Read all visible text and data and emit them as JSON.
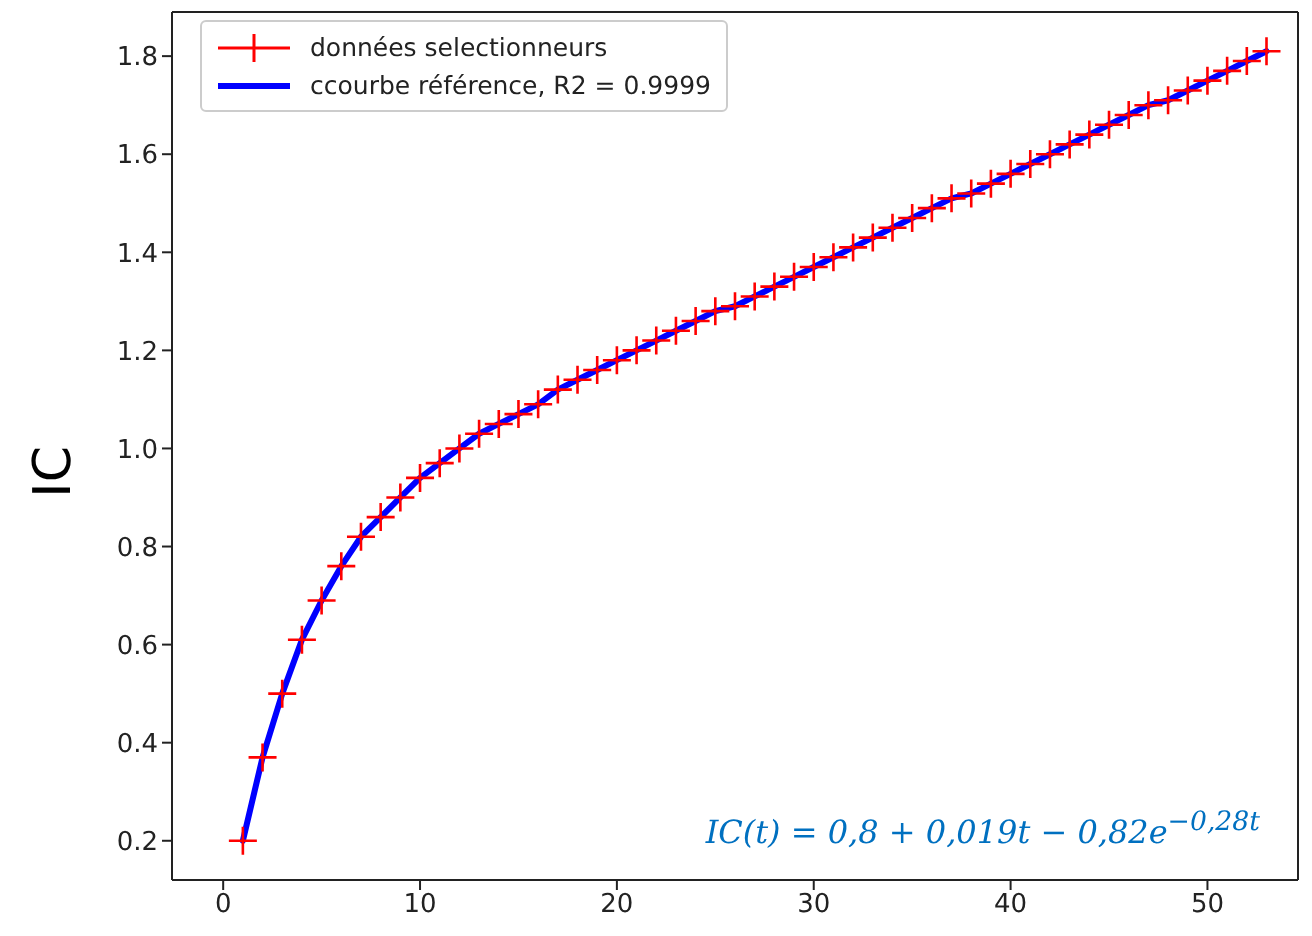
{
  "chart_data": {
    "type": "scatter",
    "ylabel": "IC",
    "x": [
      1,
      2,
      3,
      4,
      5,
      6,
      7,
      8,
      9,
      10,
      11,
      12,
      13,
      14,
      15,
      16,
      17,
      18,
      19,
      20,
      21,
      22,
      23,
      24,
      25,
      26,
      27,
      28,
      29,
      30,
      31,
      32,
      33,
      34,
      35,
      36,
      37,
      38,
      39,
      40,
      41,
      42,
      43,
      44,
      45,
      46,
      47,
      48,
      49,
      50,
      51,
      52,
      53
    ],
    "series": [
      {
        "name": "données selectionneurs",
        "marker": "cross",
        "color": "#ff0000",
        "values": [
          0.2,
          0.37,
          0.5,
          0.61,
          0.69,
          0.76,
          0.82,
          0.86,
          0.9,
          0.94,
          0.97,
          1.0,
          1.03,
          1.05,
          1.07,
          1.09,
          1.12,
          1.14,
          1.16,
          1.18,
          1.2,
          1.22,
          1.24,
          1.26,
          1.28,
          1.29,
          1.31,
          1.33,
          1.35,
          1.37,
          1.39,
          1.41,
          1.43,
          1.45,
          1.47,
          1.49,
          1.51,
          1.52,
          1.54,
          1.56,
          1.58,
          1.6,
          1.62,
          1.64,
          1.66,
          1.68,
          1.7,
          1.71,
          1.73,
          1.75,
          1.77,
          1.79,
          1.81
        ]
      },
      {
        "name": "ccourbe référence, R2 = 0.9999",
        "type": "line",
        "marker": "none",
        "line_style": "solid",
        "color": "#0000ff",
        "values": [
          0.2,
          0.37,
          0.5,
          0.61,
          0.69,
          0.76,
          0.82,
          0.86,
          0.9,
          0.94,
          0.97,
          1.0,
          1.03,
          1.05,
          1.07,
          1.09,
          1.12,
          1.14,
          1.16,
          1.18,
          1.2,
          1.22,
          1.24,
          1.26,
          1.28,
          1.29,
          1.31,
          1.33,
          1.35,
          1.37,
          1.39,
          1.41,
          1.43,
          1.45,
          1.47,
          1.49,
          1.51,
          1.52,
          1.54,
          1.56,
          1.58,
          1.6,
          1.62,
          1.64,
          1.66,
          1.68,
          1.7,
          1.71,
          1.73,
          1.75,
          1.77,
          1.79,
          1.81
        ]
      }
    ],
    "xlim": [
      -2.6,
      54.6
    ],
    "xticks": [
      0,
      10,
      20,
      30,
      40,
      50
    ],
    "ylim": [
      0.12,
      1.89
    ],
    "yticks": [
      0.2,
      0.4,
      0.6,
      0.8,
      {
        "value": 1,
        "label": "1.0"
      },
      1.2,
      1.4,
      1.6,
      1.8
    ],
    "annotations": [
      "IC(t) = 0,8 + 0,019t − 0,82e$^{−0,28t}$"
    ],
    "legend": "top left",
    "grid": false
  }
}
